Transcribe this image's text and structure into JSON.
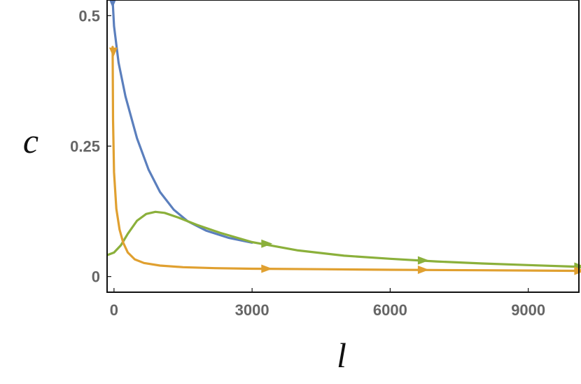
{
  "chart_data": {
    "type": "line",
    "xlabel": "l",
    "ylabel": "c",
    "xlim": [
      -150,
      10100
    ],
    "ylim": [
      -0.03,
      0.53
    ],
    "x_ticks": [
      {
        "value": 0,
        "label": "0"
      },
      {
        "value": 3000,
        "label": "3000"
      },
      {
        "value": 6000,
        "label": "6000"
      },
      {
        "value": 9000,
        "label": "9000"
      }
    ],
    "y_ticks": [
      {
        "value": 0,
        "label": "0"
      },
      {
        "value": 0.25,
        "label": "0.25"
      },
      {
        "value": 0.5,
        "label": "0.5"
      }
    ],
    "grid": false,
    "legend": "none",
    "series": [
      {
        "color": "#5b7fbd",
        "points": [
          [
            -30,
            0.53
          ],
          [
            0,
            0.48
          ],
          [
            100,
            0.41
          ],
          [
            250,
            0.345
          ],
          [
            500,
            0.265
          ],
          [
            750,
            0.205
          ],
          [
            1000,
            0.162
          ],
          [
            1300,
            0.128
          ],
          [
            1600,
            0.106
          ],
          [
            2000,
            0.088
          ],
          [
            2500,
            0.074
          ],
          [
            3000,
            0.065
          ]
        ],
        "arrows": [
          {
            "x": -30,
            "y": 0.515,
            "direction": "down"
          }
        ]
      },
      {
        "color": "#8bb03b",
        "points": [
          [
            -150,
            0.041
          ],
          [
            0,
            0.046
          ],
          [
            150,
            0.06
          ],
          [
            300,
            0.082
          ],
          [
            500,
            0.107
          ],
          [
            700,
            0.12
          ],
          [
            900,
            0.124
          ],
          [
            1100,
            0.122
          ],
          [
            1400,
            0.113
          ],
          [
            1800,
            0.099
          ],
          [
            2300,
            0.084
          ],
          [
            3000,
            0.066
          ],
          [
            4000,
            0.05
          ],
          [
            5000,
            0.04
          ],
          [
            6000,
            0.034
          ],
          [
            7000,
            0.029
          ],
          [
            8000,
            0.025
          ],
          [
            9000,
            0.022
          ],
          [
            10000,
            0.019
          ]
        ],
        "arrows": [
          {
            "x": 3200,
            "y": 0.063,
            "direction": "right"
          },
          {
            "x": 6600,
            "y": 0.031,
            "direction": "right"
          },
          {
            "x": 10000,
            "y": 0.019,
            "direction": "right"
          }
        ]
      },
      {
        "color": "#e0a030",
        "points": [
          [
            -30,
            0.44
          ],
          [
            -20,
            0.3
          ],
          [
            0,
            0.2
          ],
          [
            50,
            0.13
          ],
          [
            120,
            0.09
          ],
          [
            200,
            0.065
          ],
          [
            300,
            0.046
          ],
          [
            450,
            0.033
          ],
          [
            650,
            0.026
          ],
          [
            1000,
            0.021
          ],
          [
            1500,
            0.018
          ],
          [
            2200,
            0.016
          ],
          [
            3000,
            0.015
          ],
          [
            4500,
            0.014
          ],
          [
            6000,
            0.013
          ],
          [
            8000,
            0.012
          ],
          [
            10000,
            0.011
          ]
        ],
        "arrows": [
          {
            "x": -15,
            "y": 0.42,
            "direction": "down"
          },
          {
            "x": 3200,
            "y": 0.015,
            "direction": "right"
          },
          {
            "x": 6600,
            "y": 0.013,
            "direction": "right"
          },
          {
            "x": 10000,
            "y": 0.011,
            "direction": "right"
          }
        ]
      }
    ]
  }
}
